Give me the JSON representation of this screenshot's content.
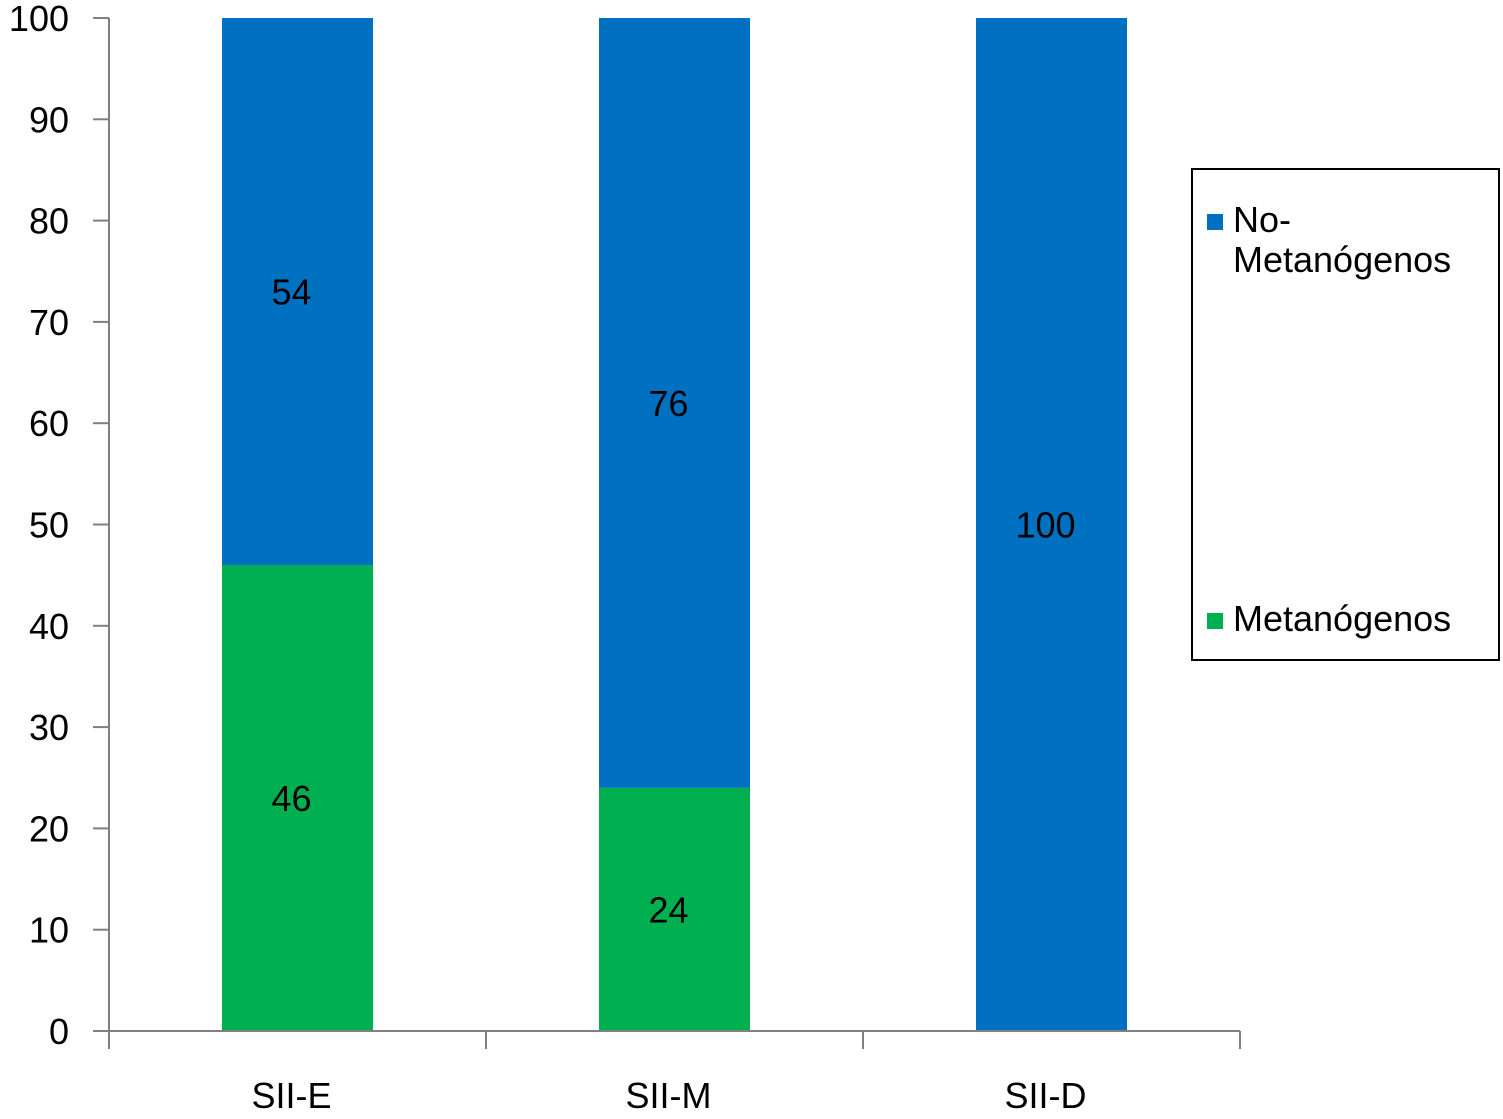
{
  "chart_data": {
    "type": "bar",
    "stacked": true,
    "categories": [
      "SII-E",
      "SII-M",
      "SII-D"
    ],
    "series": [
      {
        "name": "Metanógenos",
        "values": [
          46,
          24,
          0
        ],
        "color": "#00b050"
      },
      {
        "name": "No-Metanógenos",
        "values": [
          54,
          76,
          100
        ],
        "color": "#0070c0"
      }
    ],
    "data_labels": [
      [
        "46",
        "24",
        ""
      ],
      [
        "54",
        "76",
        "100"
      ]
    ],
    "yticks": [
      "0",
      "10",
      "20",
      "30",
      "40",
      "50",
      "60",
      "70",
      "80",
      "90",
      "100"
    ],
    "ylim": [
      0,
      100
    ],
    "grid": false,
    "legend_position": "right"
  },
  "legend": {
    "items": [
      {
        "label": "No-Metanógenos",
        "color": "#0070c0"
      },
      {
        "label": "Metanógenos",
        "color": "#00b050"
      }
    ]
  }
}
